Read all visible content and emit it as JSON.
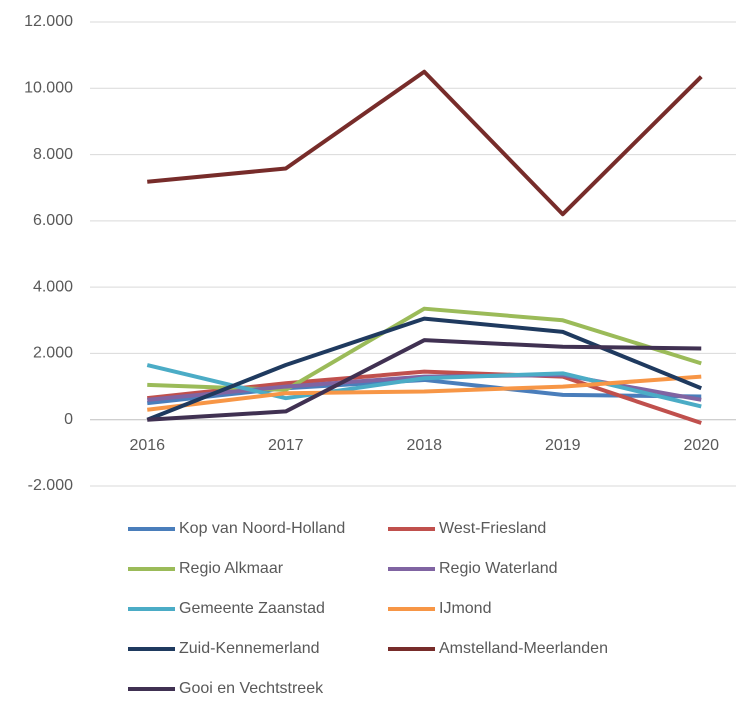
{
  "chart_data": {
    "type": "line",
    "categories": [
      "2016",
      "2017",
      "2018",
      "2019",
      "2020"
    ],
    "series": [
      {
        "name": "Kop van Noord-Holland",
        "color": "#4a7ebb",
        "values": [
          500,
          950,
          1200,
          750,
          700
        ]
      },
      {
        "name": "West-Friesland",
        "color": "#c0504d",
        "values": [
          650,
          1100,
          1450,
          1300,
          -100
        ]
      },
      {
        "name": "Regio Alkmaar",
        "color": "#9bbb59",
        "values": [
          1050,
          900,
          3350,
          3000,
          1700
        ]
      },
      {
        "name": "Regio Waterland",
        "color": "#8064a2",
        "values": [
          600,
          1000,
          1300,
          1350,
          600
        ]
      },
      {
        "name": "Gemeente Zaanstad",
        "color": "#4bacc6",
        "values": [
          1650,
          650,
          1250,
          1400,
          400
        ]
      },
      {
        "name": "IJmond",
        "color": "#f79646",
        "values": [
          300,
          800,
          850,
          1000,
          1300
        ]
      },
      {
        "name": "Zuid-Kennemerland",
        "color": "#1f3a5f",
        "values": [
          0,
          1650,
          3050,
          2650,
          950
        ]
      },
      {
        "name": "Amstelland-Meerlanden",
        "color": "#772c2a",
        "values": [
          7180,
          7580,
          10500,
          6200,
          10350
        ]
      },
      {
        "name": "Gooi en Vechtstreek",
        "color": "#403152",
        "values": [
          0,
          250,
          2400,
          2200,
          2150
        ]
      }
    ],
    "ylim": [
      -2000,
      12000
    ],
    "yticks": [
      {
        "value": -2000,
        "label": "-2.000"
      },
      0,
      {
        "value": 2000,
        "label": "2.000"
      },
      {
        "value": 4000,
        "label": "4.000"
      },
      {
        "value": 6000,
        "label": "6.000"
      },
      {
        "value": 8000,
        "label": "8.000"
      },
      {
        "value": 10000,
        "label": "10.000"
      },
      {
        "value": 12000,
        "label": "12.000"
      }
    ],
    "grid": true,
    "legend": "bottom"
  }
}
